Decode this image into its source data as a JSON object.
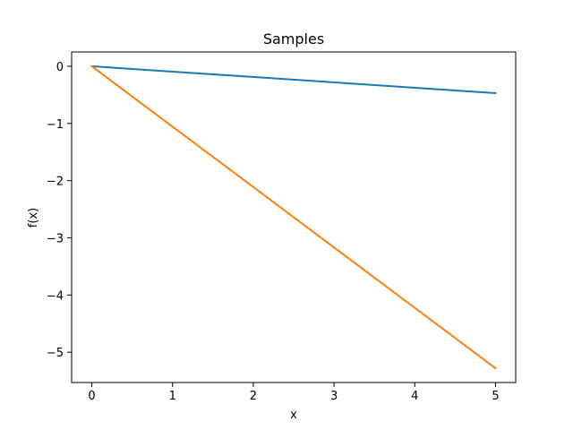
{
  "chart_data": {
    "type": "line",
    "title": "Samples",
    "xlabel": "x",
    "ylabel": "f(x)",
    "xlim": [
      -0.25,
      5.25
    ],
    "ylim": [
      -5.53,
      0.25
    ],
    "xticks": [
      0,
      1,
      2,
      3,
      4,
      5
    ],
    "xtick_labels": [
      "0",
      "1",
      "2",
      "3",
      "4",
      "5"
    ],
    "yticks": [
      0,
      -1,
      -2,
      -3,
      -4,
      -5
    ],
    "ytick_labels": [
      "0",
      "−1",
      "−2",
      "−3",
      "−4",
      "−5"
    ],
    "grid": false,
    "legend": "none",
    "series": [
      {
        "color": "#1f77b4",
        "x": [
          0,
          5
        ],
        "y": [
          0,
          -0.47
        ]
      },
      {
        "color": "#ff7f0e",
        "x": [
          0,
          5
        ],
        "y": [
          0,
          -5.28
        ]
      }
    ]
  }
}
